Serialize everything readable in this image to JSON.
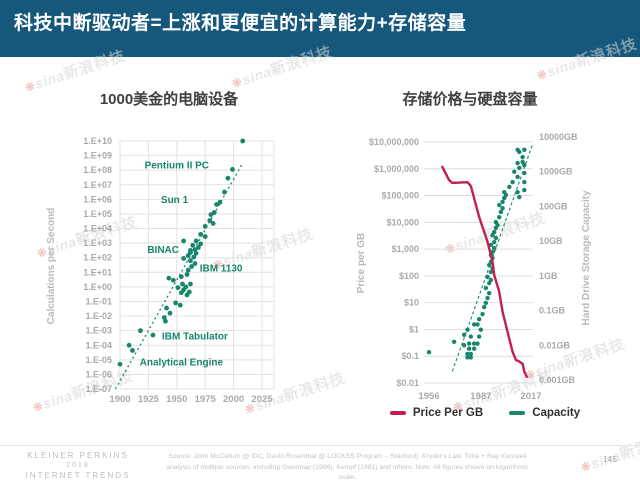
{
  "header": {
    "title": "科技中断驱动者=上涨和更便宜的计算能力+存储容量",
    "bar_color": "#15587C"
  },
  "watermark": {
    "brand": "sina",
    "text": "新浪科技",
    "gray": "#d7d7d7",
    "red": "#e0584d"
  },
  "colors": {
    "teal": "#17866C",
    "crimson": "#C41D4F",
    "grid": "#e2e2e2",
    "axis_text": "#a9a9a9",
    "axis_title": "#b9b9b9"
  },
  "chart_data": [
    {
      "type": "scatter",
      "title": "1000美金的电脑设备",
      "ylabel": "Calculations per Second",
      "x_ticks": [
        1900,
        1925,
        1950,
        1975,
        2000,
        2025
      ],
      "y_tick_labels": [
        "1.E+10",
        "1.E+09",
        "1.E+08",
        "1.E+07",
        "1.E+06",
        "1.E+05",
        "1.E+04",
        "1.E+03",
        "1.E+02",
        "1.E+01",
        "1.E+00",
        "1.E-01",
        "1.E-02",
        "1.E-03",
        "1.E-04",
        "1.E-05",
        "1.E-06",
        "1.E-07"
      ],
      "xlim": [
        1900,
        2025
      ],
      "ylog_lim": [
        -7,
        10
      ],
      "grid": true,
      "legend_position": "none",
      "trendline": {
        "style": "dotted",
        "from": [
          1896,
          -7
        ],
        "to": [
          2007,
          8.35
        ]
      },
      "points_year_log10": [
        [
          1900,
          -5.3
        ],
        [
          1908,
          -4.0
        ],
        [
          1911,
          -4.35
        ],
        [
          1918,
          -3.0
        ],
        [
          1929,
          -3.3
        ],
        [
          1939,
          -2.1
        ],
        [
          1940,
          -2.35
        ],
        [
          1941,
          -1.45
        ],
        [
          1944,
          -1.8
        ],
        [
          1949,
          -1.1
        ],
        [
          1953,
          -1.25
        ],
        [
          1943,
          0.6
        ],
        [
          1947,
          0.45
        ],
        [
          1951,
          -0.05
        ],
        [
          1955,
          0.2
        ],
        [
          1958,
          0.0
        ],
        [
          1961,
          -0.35
        ],
        [
          1954,
          -0.4
        ],
        [
          1959,
          -0.55
        ],
        [
          1962,
          0.2
        ],
        [
          1956,
          -0.2
        ],
        [
          1954,
          0.7
        ],
        [
          1959,
          0.85
        ],
        [
          1963,
          1.4
        ],
        [
          1960,
          1.15
        ],
        [
          1956,
          1.95
        ],
        [
          1960,
          2.15
        ],
        [
          1962,
          2.35
        ],
        [
          1965,
          2.05
        ],
        [
          1967,
          2.3
        ],
        [
          1962,
          1.8
        ],
        [
          1966,
          1.6
        ],
        [
          1956,
          3.15
        ],
        [
          1964,
          2.85
        ],
        [
          1969,
          2.7
        ],
        [
          1971,
          2.95
        ],
        [
          1967,
          3.15
        ],
        [
          1962,
          2.5
        ],
        [
          1966,
          2.55
        ],
        [
          1971,
          3.6
        ],
        [
          1975,
          3.45
        ],
        [
          1975,
          4.15
        ],
        [
          1979,
          4.55
        ],
        [
          1982,
          4.35
        ],
        [
          1980,
          4.95
        ],
        [
          1983,
          5.1
        ],
        [
          1985,
          5.65
        ],
        [
          1988,
          5.8
        ],
        [
          1992,
          6.5
        ],
        [
          1995,
          7.45
        ],
        [
          1999,
          8.05
        ],
        [
          2008,
          10.0
        ]
      ],
      "annotations": [
        {
          "label": "Pentium II PC",
          "year": 1950,
          "log10": 8.35
        },
        {
          "label": "Sun 1",
          "year": 1948,
          "log10": 6.0
        },
        {
          "label": "BINAC",
          "year": 1938,
          "log10": 2.55
        },
        {
          "label": "IBM 1130",
          "year": 1989,
          "log10": 1.3
        },
        {
          "label": "IBM Tabulator",
          "year": 1966,
          "log10": -3.35
        },
        {
          "label": "Analytical Engine",
          "year": 1954,
          "log10": -5.15
        }
      ]
    },
    {
      "type": "line+scatter",
      "title": "存储价格与硬盘容量",
      "ylabel_left": "Price per GB",
      "ylabel_right": "Hard Drive Storage Capacity",
      "x_ticks": [
        1956,
        1987,
        2017
      ],
      "left_tick_labels": [
        "$10,000,000",
        "$1,000,000",
        "$100,000",
        "$10,000",
        "$1,000",
        "$100",
        "$10",
        "$1",
        "$0.1",
        "$0.01"
      ],
      "right_tick_labels": [
        "10000GB",
        "1000GB",
        "100GB",
        "10GB",
        "1GB",
        "0.1GB",
        "0.01GB",
        "0.001GB"
      ],
      "price_log_range": [
        7,
        -2
      ],
      "capacity_log_range": [
        4,
        -3
      ],
      "price_line_year_log10": [
        [
          1964,
          6.07
        ],
        [
          1968,
          5.58
        ],
        [
          1970,
          5.47
        ],
        [
          1979,
          5.5
        ],
        [
          1981,
          5.36
        ],
        [
          1986,
          4.2
        ],
        [
          1991,
          3.27
        ],
        [
          1994,
          2.52
        ],
        [
          1995,
          2.04
        ],
        [
          1998,
          1.4
        ],
        [
          2000,
          0.66
        ],
        [
          2003,
          -0.09
        ],
        [
          2006,
          -0.84
        ],
        [
          2008,
          -1.14
        ],
        [
          2010,
          -1.2
        ],
        [
          2012,
          -1.28
        ],
        [
          2013,
          -1.58
        ],
        [
          2014.5,
          -1.77
        ]
      ],
      "capacity_trend": {
        "style": "dashed",
        "from": [
          1970,
          -2.75
        ],
        "to": [
          2018,
          3.8
        ]
      },
      "capacity_points_year_log10": [
        [
          1956,
          -2.2
        ],
        [
          1971,
          -1.9
        ],
        [
          1977,
          -1.7
        ],
        [
          1979,
          -1.55
        ],
        [
          1981,
          -1.75
        ],
        [
          1983,
          -1.95
        ],
        [
          1980,
          -1.95
        ],
        [
          1977,
          -2.0
        ],
        [
          1980,
          -2.1
        ],
        [
          1983,
          -2.1
        ],
        [
          1985,
          -1.95
        ],
        [
          1979,
          -2.25
        ],
        [
          1981,
          -2.25
        ],
        [
          1979,
          -2.35
        ],
        [
          1981,
          -2.35
        ],
        [
          1986,
          -1.75
        ],
        [
          1987,
          -1.55
        ],
        [
          1985,
          -1.4
        ],
        [
          1986,
          -1.25
        ],
        [
          1983,
          -1.4
        ],
        [
          1988,
          -1.1
        ],
        [
          1989,
          -0.9
        ],
        [
          1990,
          -0.78
        ],
        [
          1991,
          -0.64
        ],
        [
          1992,
          -0.5
        ],
        [
          1990,
          -0.35
        ],
        [
          1992,
          -0.21
        ],
        [
          1993,
          -0.12
        ],
        [
          1991,
          -0.03
        ],
        [
          1993,
          0.11
        ],
        [
          1994,
          0.22
        ],
        [
          1992,
          0.31
        ],
        [
          1993,
          0.4
        ],
        [
          1994,
          0.51
        ],
        [
          1993,
          0.6
        ],
        [
          1994,
          0.69
        ],
        [
          1995,
          0.8
        ],
        [
          1993,
          0.89
        ],
        [
          1995,
          0.97
        ],
        [
          1996,
          1.09
        ],
        [
          1994,
          1.17
        ],
        [
          1995,
          1.26
        ],
        [
          1996,
          1.38
        ],
        [
          1997,
          1.46
        ],
        [
          1996,
          1.55
        ],
        [
          1998,
          1.69
        ],
        [
          1999,
          1.84
        ],
        [
          2000,
          1.95
        ],
        [
          1998,
          2.04
        ],
        [
          2000,
          2.13
        ],
        [
          2001,
          2.24
        ],
        [
          2002,
          2.33
        ],
        [
          2001,
          2.41
        ],
        [
          2010,
          2.27
        ],
        [
          2009,
          2.41
        ],
        [
          2004,
          2.56
        ],
        [
          2006,
          2.7
        ],
        [
          2009,
          2.85
        ],
        [
          2007,
          3.0
        ],
        [
          2010,
          3.11
        ],
        [
          2009,
          3.25
        ],
        [
          2012,
          3.28
        ],
        [
          2012,
          3.42
        ],
        [
          2010,
          3.57
        ],
        [
          2013,
          3.63
        ],
        [
          2009,
          3.63
        ],
        [
          2013,
          3.19
        ],
        [
          2013,
          2.96
        ],
        [
          2013,
          2.7
        ],
        [
          2013,
          2.47
        ]
      ],
      "legend": [
        {
          "label": "Price Per GB",
          "color": "#C41D4F"
        },
        {
          "label": "Capacity",
          "color": "#17866C"
        }
      ]
    }
  ],
  "footer": {
    "brand_lines": [
      "KLEINER PERKINS",
      "2018",
      "INTERNET TRENDS"
    ],
    "source": "Source: John McCallum @ IDC, David Rosenthal @ LOCKSS Program – Stanford): Kryder's Law. Time + Ray Kurzweil analysis of multiple sources, including Gwennap (1996), Kempf (1981) and others. Note: All figures shown on logarithmic scale.",
    "page_number": "145"
  }
}
